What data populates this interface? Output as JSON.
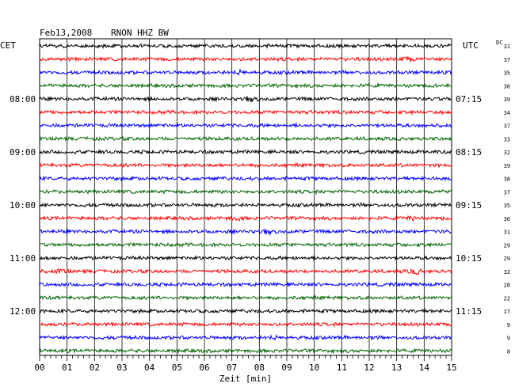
{
  "header": {
    "date": "Feb13,2008",
    "station": "RNON HHZ BW",
    "left_zone": "CET",
    "right_zone": "UTC",
    "dc_label": "DC"
  },
  "chart_data": {
    "type": "line",
    "title": "Feb13,2008   RNON HHZ BW",
    "xlabel": "Zeit [min]",
    "ylabel": "",
    "xlim": [
      0,
      15
    ],
    "x_ticks": [
      "00",
      "01",
      "02",
      "03",
      "04",
      "05",
      "06",
      "07",
      "08",
      "09",
      "10",
      "11",
      "12",
      "13",
      "14",
      "15"
    ],
    "grid": true,
    "trace_colors": [
      "#000000",
      "#ff0000",
      "#0000ff",
      "#006400"
    ],
    "cet_labels": [
      {
        "trace": 4,
        "label": "08:00"
      },
      {
        "trace": 8,
        "label": "09:00"
      },
      {
        "trace": 12,
        "label": "10:00"
      },
      {
        "trace": 16,
        "label": "11:00"
      },
      {
        "trace": 20,
        "label": "12:00"
      }
    ],
    "utc_labels": [
      {
        "trace": 4,
        "label": "07:15"
      },
      {
        "trace": 8,
        "label": "08:15"
      },
      {
        "trace": 12,
        "label": "09:15"
      },
      {
        "trace": 16,
        "label": "10:15"
      },
      {
        "trace": 20,
        "label": "11:15"
      }
    ],
    "dc_values": [
      "31",
      "37",
      "35",
      "36",
      "39",
      "34",
      "37",
      "33",
      "32",
      "39",
      "38",
      "37",
      "35",
      "36",
      "31",
      "29",
      "29",
      "32",
      "28",
      "22",
      "17",
      "9",
      "9",
      "8"
    ],
    "events": [
      {
        "trace": 1,
        "minute": 13.4,
        "amp": 1.6
      },
      {
        "trace": 2,
        "minute": 7.3,
        "amp": 1.8
      },
      {
        "trace": 4,
        "minute": 7.7,
        "amp": 2.6
      },
      {
        "trace": 11,
        "minute": 15.0,
        "amp": 1.8
      },
      {
        "trace": 13,
        "minute": 7.1,
        "amp": 1.8
      },
      {
        "trace": 13,
        "minute": 13.6,
        "amp": 1.4
      },
      {
        "trace": 14,
        "minute": 8.3,
        "amp": 2.4
      },
      {
        "trace": 17,
        "minute": 0.8,
        "amp": 1.6
      },
      {
        "trace": 17,
        "minute": 13.7,
        "amp": 2.2
      },
      {
        "trace": 22,
        "minute": 8.5,
        "amp": 1.5
      }
    ]
  }
}
